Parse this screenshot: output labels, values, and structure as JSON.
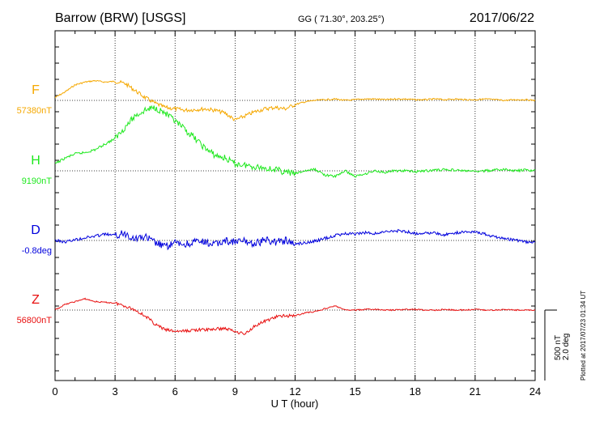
{
  "header": {
    "station": "Barrow (BRW)  [USGS]",
    "coords": "GG ( 71.30°, 203.25°)",
    "date": "2017/06/22"
  },
  "side": {
    "plotted": "Plotted at 2017/07/23 01:34 UT",
    "scale_nt": "500 nT",
    "scale_deg": "2.0 deg"
  },
  "chart_data": {
    "type": "line",
    "xlabel": "U T (hour)",
    "xlim": [
      0,
      24
    ],
    "xticks": [
      "0",
      "3",
      "6",
      "9",
      "12",
      "15",
      "18",
      "21",
      "24"
    ],
    "grid": true,
    "scale_bar": {
      "nT": 500,
      "deg": 2.0
    },
    "series": [
      {
        "name": "F",
        "baseline_label": "57380nT",
        "baseline": 57380,
        "unit": "nT",
        "color": "#f5a800",
        "x": [
          0,
          0.5,
          1,
          1.5,
          2,
          2.5,
          3,
          3.5,
          4,
          4.5,
          5,
          5.5,
          6,
          6.5,
          7,
          7.5,
          8,
          8.5,
          9,
          9.5,
          10,
          10.5,
          11,
          11.5,
          12,
          12.5,
          13,
          13.5,
          14,
          14.5,
          15,
          15.5,
          16,
          16.5,
          17,
          17.5,
          18,
          18.5,
          19,
          19.5,
          20,
          20.5,
          21,
          21.5,
          22,
          22.5,
          23,
          23.5,
          24
        ],
        "values": [
          57400,
          57440,
          57490,
          57510,
          57520,
          57510,
          57515,
          57500,
          57450,
          57400,
          57360,
          57330,
          57320,
          57310,
          57315,
          57320,
          57310,
          57290,
          57240,
          57270,
          57300,
          57320,
          57330,
          57320,
          57350,
          57370,
          57380,
          57385,
          57390,
          57380,
          57385,
          57390,
          57390,
          57385,
          57390,
          57390,
          57385,
          57385,
          57390,
          57385,
          57390,
          57385,
          57385,
          57390,
          57385,
          57380,
          57385,
          57385,
          57380
        ]
      },
      {
        "name": "H",
        "baseline_label": "9190nT",
        "baseline": 9190,
        "unit": "nT",
        "color": "#1ee81e",
        "x": [
          0,
          0.5,
          1,
          1.5,
          2,
          2.5,
          3,
          3.5,
          4,
          4.5,
          5,
          5.5,
          6,
          6.5,
          7,
          7.5,
          8,
          8.5,
          9,
          9.5,
          10,
          10.5,
          11,
          11.5,
          12,
          12.5,
          13,
          13.5,
          14,
          14.5,
          15,
          15.5,
          16,
          16.5,
          17,
          17.5,
          18,
          18.5,
          19,
          19.5,
          20,
          20.5,
          21,
          21.5,
          22,
          22.5,
          23,
          23.5,
          24
        ],
        "values": [
          9240,
          9280,
          9310,
          9320,
          9340,
          9380,
          9420,
          9500,
          9580,
          9620,
          9640,
          9600,
          9540,
          9480,
          9420,
          9350,
          9300,
          9280,
          9240,
          9230,
          9220,
          9210,
          9200,
          9180,
          9170,
          9190,
          9200,
          9160,
          9150,
          9190,
          9150,
          9170,
          9190,
          9180,
          9190,
          9190,
          9185,
          9190,
          9195,
          9200,
          9195,
          9190,
          9185,
          9190,
          9195,
          9200,
          9190,
          9195,
          9190
        ]
      },
      {
        "name": "D",
        "baseline_label": "-0.8deg",
        "baseline": -0.8,
        "unit": "deg",
        "color": "#0000dd",
        "x": [
          0,
          0.5,
          1,
          1.5,
          2,
          2.5,
          3,
          3.5,
          4,
          4.5,
          5,
          5.5,
          6,
          6.5,
          7,
          7.5,
          8,
          8.5,
          9,
          9.5,
          10,
          10.5,
          11,
          11.5,
          12,
          12.5,
          13,
          13.5,
          14,
          14.5,
          15,
          15.5,
          16,
          16.5,
          17,
          17.5,
          18,
          18.5,
          19,
          19.5,
          20,
          20.5,
          21,
          21.5,
          22,
          22.5,
          23,
          23.5,
          24
        ],
        "values": [
          -0.8,
          -0.84,
          -0.78,
          -0.72,
          -0.68,
          -0.62,
          -0.66,
          -0.6,
          -0.74,
          -0.7,
          -0.86,
          -0.98,
          -0.88,
          -0.92,
          -0.84,
          -0.86,
          -0.92,
          -0.8,
          -0.85,
          -0.82,
          -0.9,
          -0.78,
          -0.84,
          -0.8,
          -0.9,
          -0.86,
          -0.82,
          -0.74,
          -0.66,
          -0.6,
          -0.62,
          -0.58,
          -0.6,
          -0.56,
          -0.52,
          -0.54,
          -0.6,
          -0.58,
          -0.6,
          -0.64,
          -0.58,
          -0.56,
          -0.54,
          -0.62,
          -0.7,
          -0.76,
          -0.78,
          -0.84,
          -0.86
        ]
      },
      {
        "name": "Z",
        "baseline_label": "56800nT",
        "baseline": 56800,
        "unit": "nT",
        "color": "#e81010",
        "x": [
          0,
          0.5,
          1,
          1.5,
          2,
          2.5,
          3,
          3.5,
          4,
          4.5,
          5,
          5.5,
          6,
          6.5,
          7,
          7.5,
          8,
          8.5,
          9,
          9.5,
          10,
          10.5,
          11,
          11.5,
          12,
          12.5,
          13,
          13.5,
          14,
          14.5,
          15,
          15.5,
          16,
          16.5,
          17,
          17.5,
          18,
          18.5,
          19,
          19.5,
          20,
          20.5,
          21,
          21.5,
          22,
          22.5,
          23,
          23.5,
          24
        ],
        "values": [
          56800,
          56840,
          56860,
          56880,
          56860,
          56855,
          56850,
          56830,
          56800,
          56760,
          56700,
          56660,
          56650,
          56650,
          56660,
          56660,
          56665,
          56670,
          56650,
          56630,
          56690,
          56720,
          56750,
          56760,
          56760,
          56780,
          56790,
          56810,
          56830,
          56800,
          56800,
          56805,
          56805,
          56800,
          56800,
          56805,
          56805,
          56800,
          56800,
          56805,
          56800,
          56800,
          56805,
          56800,
          56800,
          56805,
          56800,
          56800,
          56800
        ]
      }
    ]
  }
}
